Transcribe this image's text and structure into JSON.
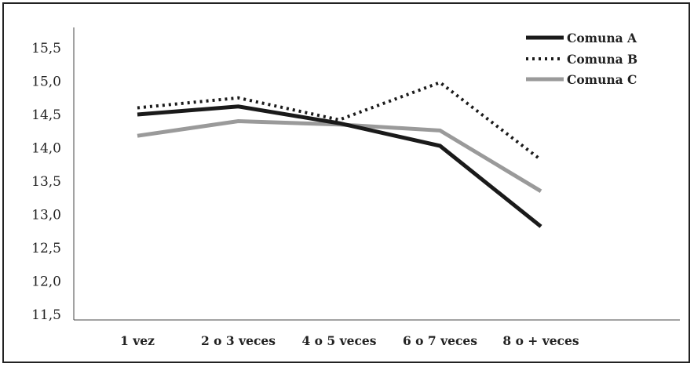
{
  "chart_data": {
    "type": "line",
    "categories": [
      "1 vez",
      "2 o 3 veces",
      "4 o 5 veces",
      "6 o 7 veces",
      "8 o + veces"
    ],
    "y_ticks": [
      "11,5",
      "12,0",
      "12,5",
      "13,0",
      "13,5",
      "14,0",
      "14,5",
      "15,0",
      "15,5"
    ],
    "ylim": [
      11.5,
      15.5
    ],
    "grid": false,
    "legend_position": "top-right",
    "series": [
      {
        "name": "Comuna A",
        "values": [
          14.5,
          14.62,
          14.37,
          14.03,
          12.82
        ],
        "color": "#1a1a1a",
        "style": "solid"
      },
      {
        "name": "Comuna B",
        "values": [
          14.6,
          14.75,
          14.42,
          14.98,
          13.82
        ],
        "color": "#1a1a1a",
        "style": "dotted"
      },
      {
        "name": "Comuna C",
        "values": [
          14.18,
          14.4,
          14.35,
          14.26,
          13.35
        ],
        "color": "#9a9a9a",
        "style": "solid"
      }
    ]
  }
}
